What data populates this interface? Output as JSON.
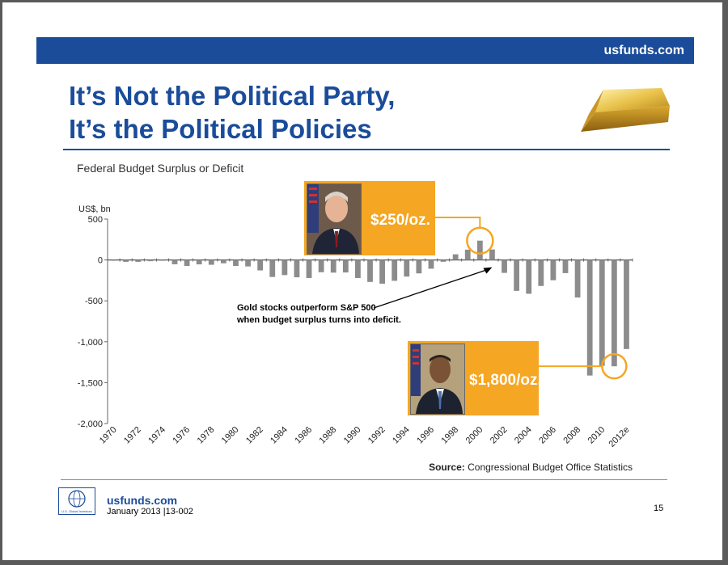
{
  "slide": {
    "banner_url": "usfunds.com",
    "title_line1": "It’s Not the Political Party,",
    "title_line2": "It’s the Political Policies",
    "chart_title": "Federal Budget Surplus or Deficit",
    "source_label": "Source:",
    "source_text": "Congressional Budget Office Statistics",
    "annotation_line1": "Gold stocks outperform S&P 500",
    "annotation_line2": "when budget surplus turns into deficit.",
    "callout_clinton_price": "$250/oz.",
    "callout_obama_price": "$1,800/oz.",
    "footer_url": "usfunds.com",
    "footer_date": "January 2013 |13-002",
    "page_number": "15",
    "logo_text": "U.S. Global Investors"
  },
  "colors": {
    "brand_blue": "#1a4c9a",
    "bar_gray": "#8c8c8c",
    "callout_orange": "#f5a623"
  },
  "chart_data": {
    "type": "bar",
    "title": "Federal Budget Surplus or Deficit",
    "ylabel": "US$, bn",
    "ylim": [
      -2000,
      500
    ],
    "yticks": [
      500,
      0,
      -500,
      -1000,
      -1500,
      -2000
    ],
    "ytick_labels": [
      "500",
      "0",
      "-500",
      "-1,000",
      "-1,500",
      "-2,000"
    ],
    "xtick_labels": [
      "1970",
      "1972",
      "1974",
      "1976",
      "1978",
      "1980",
      "1982",
      "1984",
      "1986",
      "1988",
      "1990",
      "1992",
      "1994",
      "1996",
      "1998",
      "2000",
      "2002",
      "2004",
      "2006",
      "2008",
      "2010",
      "2012e"
    ],
    "categories": [
      "1970",
      "1971",
      "1972",
      "1973",
      "1974",
      "1975",
      "1976",
      "1977",
      "1978",
      "1979",
      "1980",
      "1981",
      "1982",
      "1983",
      "1984",
      "1985",
      "1986",
      "1987",
      "1988",
      "1989",
      "1990",
      "1991",
      "1992",
      "1993",
      "1994",
      "1995",
      "1996",
      "1997",
      "1998",
      "1999",
      "2000",
      "2001",
      "2002",
      "2003",
      "2004",
      "2005",
      "2006",
      "2007",
      "2008",
      "2009",
      "2010",
      "2011",
      "2012e"
    ],
    "values": [
      -3,
      -23,
      -23,
      -15,
      -6,
      -53,
      -74,
      -54,
      -59,
      -41,
      -74,
      -79,
      -128,
      -208,
      -185,
      -212,
      -221,
      -150,
      -155,
      -153,
      -221,
      -269,
      -290,
      -255,
      -203,
      -164,
      -107,
      -22,
      69,
      126,
      236,
      128,
      -158,
      -378,
      -413,
      -318,
      -248,
      -161,
      -459,
      -1413,
      -1294,
      -1300,
      -1089
    ]
  }
}
